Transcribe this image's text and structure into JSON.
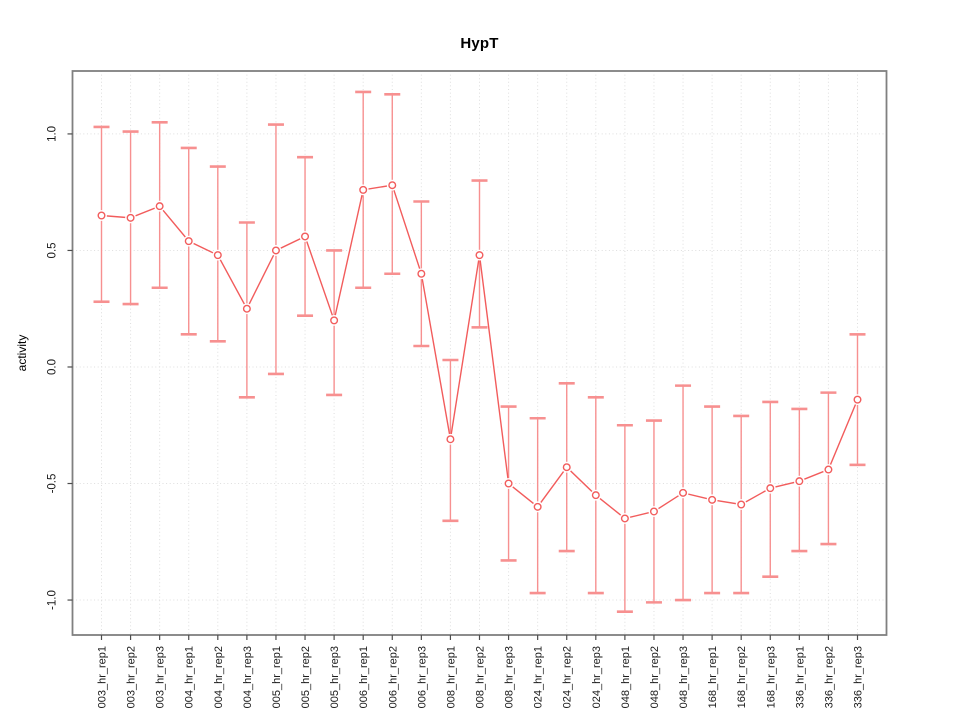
{
  "chart_data": {
    "type": "line",
    "title": "HypT",
    "ylabel": "activity",
    "xlabel": "",
    "legend_position": "none",
    "grid": "dotted",
    "marker": "open-circle",
    "error_bars": true,
    "categories": [
      "003_hr_rep1",
      "003_hr_rep2",
      "003_hr_rep3",
      "004_hr_rep1",
      "004_hr_rep2",
      "004_hr_rep3",
      "005_hr_rep1",
      "005_hr_rep2",
      "005_hr_rep3",
      "006_hr_rep1",
      "006_hr_rep2",
      "006_hr_rep3",
      "008_hr_rep1",
      "008_hr_rep2",
      "008_hr_rep3",
      "024_hr_rep1",
      "024_hr_rep2",
      "024_hr_rep3",
      "048_hr_rep1",
      "048_hr_rep2",
      "048_hr_rep3",
      "168_hr_rep1",
      "168_hr_rep2",
      "168_hr_rep3",
      "336_hr_rep1",
      "336_hr_rep2",
      "336_hr_rep3"
    ],
    "values": [
      0.65,
      0.64,
      0.69,
      0.54,
      0.48,
      0.25,
      0.5,
      0.56,
      0.2,
      0.76,
      0.78,
      0.4,
      -0.31,
      0.48,
      -0.5,
      -0.6,
      -0.43,
      -0.55,
      -0.65,
      -0.62,
      -0.54,
      -0.57,
      -0.59,
      -0.52,
      -0.49,
      -0.44,
      -0.14
    ],
    "error_upper": [
      1.03,
      1.01,
      1.05,
      0.94,
      0.86,
      0.62,
      1.04,
      0.9,
      0.5,
      1.18,
      1.17,
      0.71,
      0.03,
      0.8,
      -0.17,
      -0.22,
      -0.07,
      -0.13,
      -0.25,
      -0.23,
      -0.08,
      -0.17,
      -0.21,
      -0.15,
      -0.18,
      -0.11,
      0.14
    ],
    "error_lower": [
      0.28,
      0.27,
      0.34,
      0.14,
      0.11,
      -0.13,
      -0.03,
      0.22,
      -0.12,
      0.34,
      0.4,
      0.09,
      -0.66,
      0.17,
      -0.83,
      -0.97,
      -0.79,
      -0.97,
      -1.05,
      -1.01,
      -1.0,
      -0.97,
      -0.97,
      -0.9,
      -0.79,
      -0.76,
      -0.42
    ],
    "ytick_values": [
      -1.0,
      -0.5,
      0.0,
      0.5,
      1.0
    ],
    "ytick_labels": [
      "-1.0",
      "-0.5",
      "0.0",
      "0.5",
      "1.0"
    ],
    "ylim": [
      -1.15,
      1.27
    ],
    "colors": {
      "series": "#f25c5c",
      "error_bar": "#f79090",
      "grid": "#dedede",
      "axis": "#808080",
      "tick": "#4d4d4d",
      "text": "#1a1a1a",
      "background": "#ffffff"
    }
  }
}
